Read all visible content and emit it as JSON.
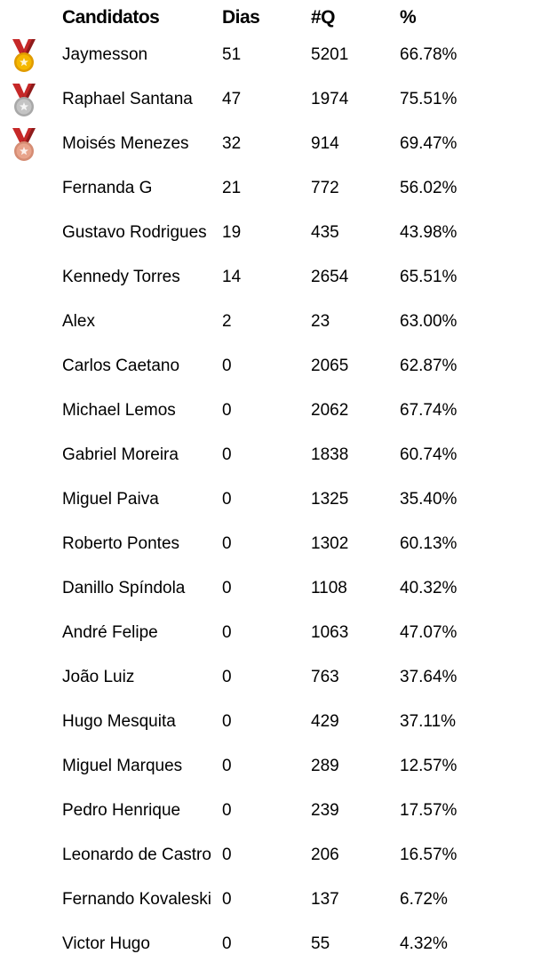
{
  "table": {
    "headers": {
      "name": "Candidatos",
      "days": "Dias",
      "questions": "#Q",
      "percent": "%"
    },
    "rows": [
      {
        "medal": "gold-medal-icon",
        "name": "Jaymesson",
        "days": "51",
        "questions": "5201",
        "percent": "66.78%"
      },
      {
        "medal": "silver-medal-icon",
        "name": "Raphael Santana",
        "days": "47",
        "questions": "1974",
        "percent": "75.51%"
      },
      {
        "medal": "bronze-medal-icon",
        "name": "Moisés Menezes",
        "days": "32",
        "questions": "914",
        "percent": "69.47%"
      },
      {
        "medal": "",
        "name": "Fernanda G",
        "days": "21",
        "questions": "772",
        "percent": "56.02%"
      },
      {
        "medal": "",
        "name": "Gustavo Rodrigues",
        "days": "19",
        "questions": "435",
        "percent": "43.98%"
      },
      {
        "medal": "",
        "name": "Kennedy Torres",
        "days": "14",
        "questions": "2654",
        "percent": "65.51%"
      },
      {
        "medal": "",
        "name": "Alex",
        "days": "2",
        "questions": "23",
        "percent": "63.00%"
      },
      {
        "medal": "",
        "name": "Carlos Caetano",
        "days": "0",
        "questions": "2065",
        "percent": "62.87%"
      },
      {
        "medal": "",
        "name": "Michael Lemos",
        "days": "0",
        "questions": "2062",
        "percent": "67.74%"
      },
      {
        "medal": "",
        "name": "Gabriel Moreira",
        "days": "0",
        "questions": "1838",
        "percent": "60.74%"
      },
      {
        "medal": "",
        "name": "Miguel Paiva",
        "days": "0",
        "questions": "1325",
        "percent": "35.40%"
      },
      {
        "medal": "",
        "name": "Roberto Pontes",
        "days": "0",
        "questions": "1302",
        "percent": "60.13%"
      },
      {
        "medal": "",
        "name": "Danillo Spíndola",
        "days": "0",
        "questions": "1108",
        "percent": "40.32%"
      },
      {
        "medal": "",
        "name": "André Felipe",
        "days": "0",
        "questions": "1063",
        "percent": "47.07%"
      },
      {
        "medal": "",
        "name": "João Luiz",
        "days": "0",
        "questions": "763",
        "percent": "37.64%"
      },
      {
        "medal": "",
        "name": "Hugo Mesquita",
        "days": "0",
        "questions": "429",
        "percent": "37.11%"
      },
      {
        "medal": "",
        "name": "Miguel Marques",
        "days": "0",
        "questions": "289",
        "percent": "12.57%"
      },
      {
        "medal": "",
        "name": "Pedro Henrique",
        "days": "0",
        "questions": "239",
        "percent": "17.57%"
      },
      {
        "medal": "",
        "name": "Leonardo de Castro",
        "days": "0",
        "questions": "206",
        "percent": "16.57%"
      },
      {
        "medal": "",
        "name": "Fernando Kovaleski",
        "days": "0",
        "questions": "137",
        "percent": "6.72%"
      },
      {
        "medal": "",
        "name": "Victor Hugo",
        "days": "0",
        "questions": "55",
        "percent": "4.32%"
      }
    ]
  },
  "colors": {
    "gold": "#f5b800",
    "gold_dark": "#e09b00",
    "silver": "#c4c4c4",
    "silver_dark": "#a8a8a8",
    "bronze": "#e8a48c",
    "bronze_dark": "#d58c73",
    "ribbon_red": "#c62828",
    "ribbon_dark": "#8e1b1b"
  }
}
